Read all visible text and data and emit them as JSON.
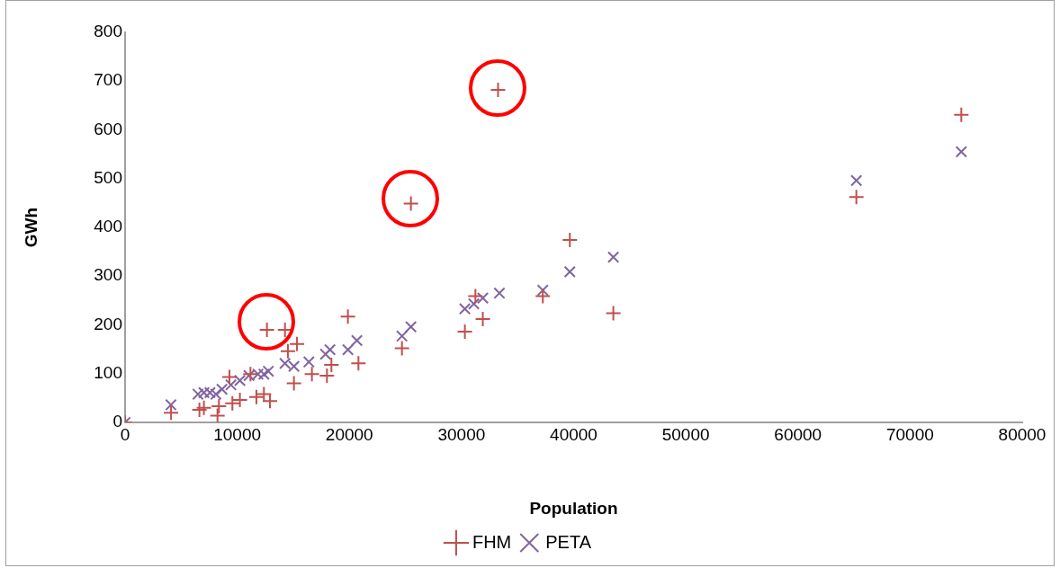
{
  "chart_data": {
    "type": "scatter",
    "xlabel": "Population",
    "ylabel": "GWh",
    "xlim": [
      0,
      80000
    ],
    "xticks": [
      0,
      10000,
      20000,
      30000,
      40000,
      50000,
      60000,
      70000,
      80000
    ],
    "ylim": [
      0,
      800
    ],
    "yticks": [
      0,
      100,
      200,
      300,
      400,
      500,
      600,
      700,
      800
    ],
    "grid": false,
    "legend": "bottom",
    "series": [
      {
        "name": "FHM",
        "color": "#c0504d",
        "marker": "cross",
        "x": [
          0,
          4100,
          6630,
          7030,
          8240,
          8370,
          9310,
          9570,
          10240,
          11180,
          11710,
          12380,
          12650,
          12920,
          14260,
          14520,
          15060,
          15330,
          16660,
          18000,
          18400,
          19870,
          20810,
          24690,
          25490,
          30300,
          31240,
          31900,
          33260,
          37250,
          39660,
          43540,
          65210,
          74570
        ],
        "values": [
          0,
          20,
          26,
          30,
          14,
          33,
          93,
          39,
          46,
          99,
          52,
          58,
          190,
          44,
          190,
          146,
          80,
          161,
          99,
          96,
          118,
          217,
          121,
          152,
          449,
          186,
          259,
          212,
          682,
          259,
          374,
          224,
          462,
          631
        ]
      },
      {
        "name": "PETA",
        "color": "#8064a2",
        "marker": "x",
        "x": [
          0,
          4090,
          6500,
          7030,
          7570,
          8100,
          8640,
          9440,
          10240,
          11050,
          11850,
          12380,
          12780,
          14260,
          15060,
          16390,
          17870,
          18270,
          19870,
          20670,
          24690,
          25490,
          30300,
          31100,
          31900,
          33380,
          37250,
          39660,
          43540,
          65210,
          74570
        ],
        "values": [
          0,
          36,
          58,
          61,
          61,
          58,
          68,
          77,
          86,
          96,
          99,
          99,
          105,
          121,
          115,
          124,
          140,
          149,
          149,
          168,
          177,
          196,
          233,
          243,
          255,
          265,
          271,
          309,
          339,
          496,
          555
        ]
      }
    ]
  }
}
